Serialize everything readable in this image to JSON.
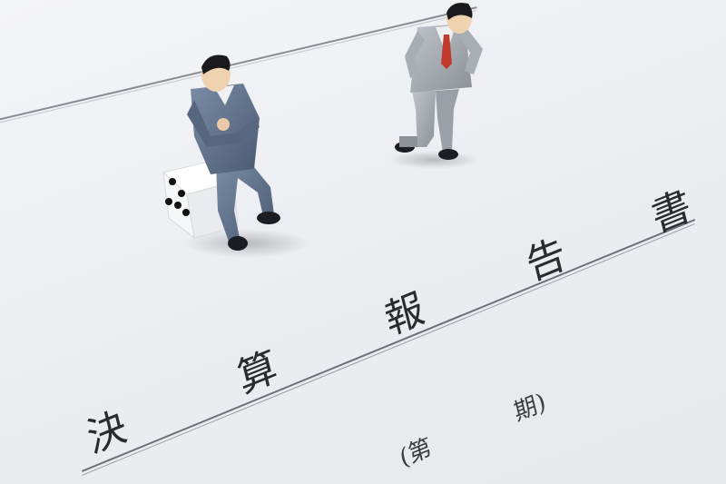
{
  "document": {
    "title_chars": [
      "決",
      "算",
      "報",
      "告",
      "書"
    ],
    "subtitle_chars": [
      "(第",
      "期)"
    ]
  },
  "colors": {
    "paper": "#eef0f2",
    "ink": "#2a2b2e",
    "suit_blue": "#5e6f8a",
    "suit_gray": "#9ea3aa"
  }
}
